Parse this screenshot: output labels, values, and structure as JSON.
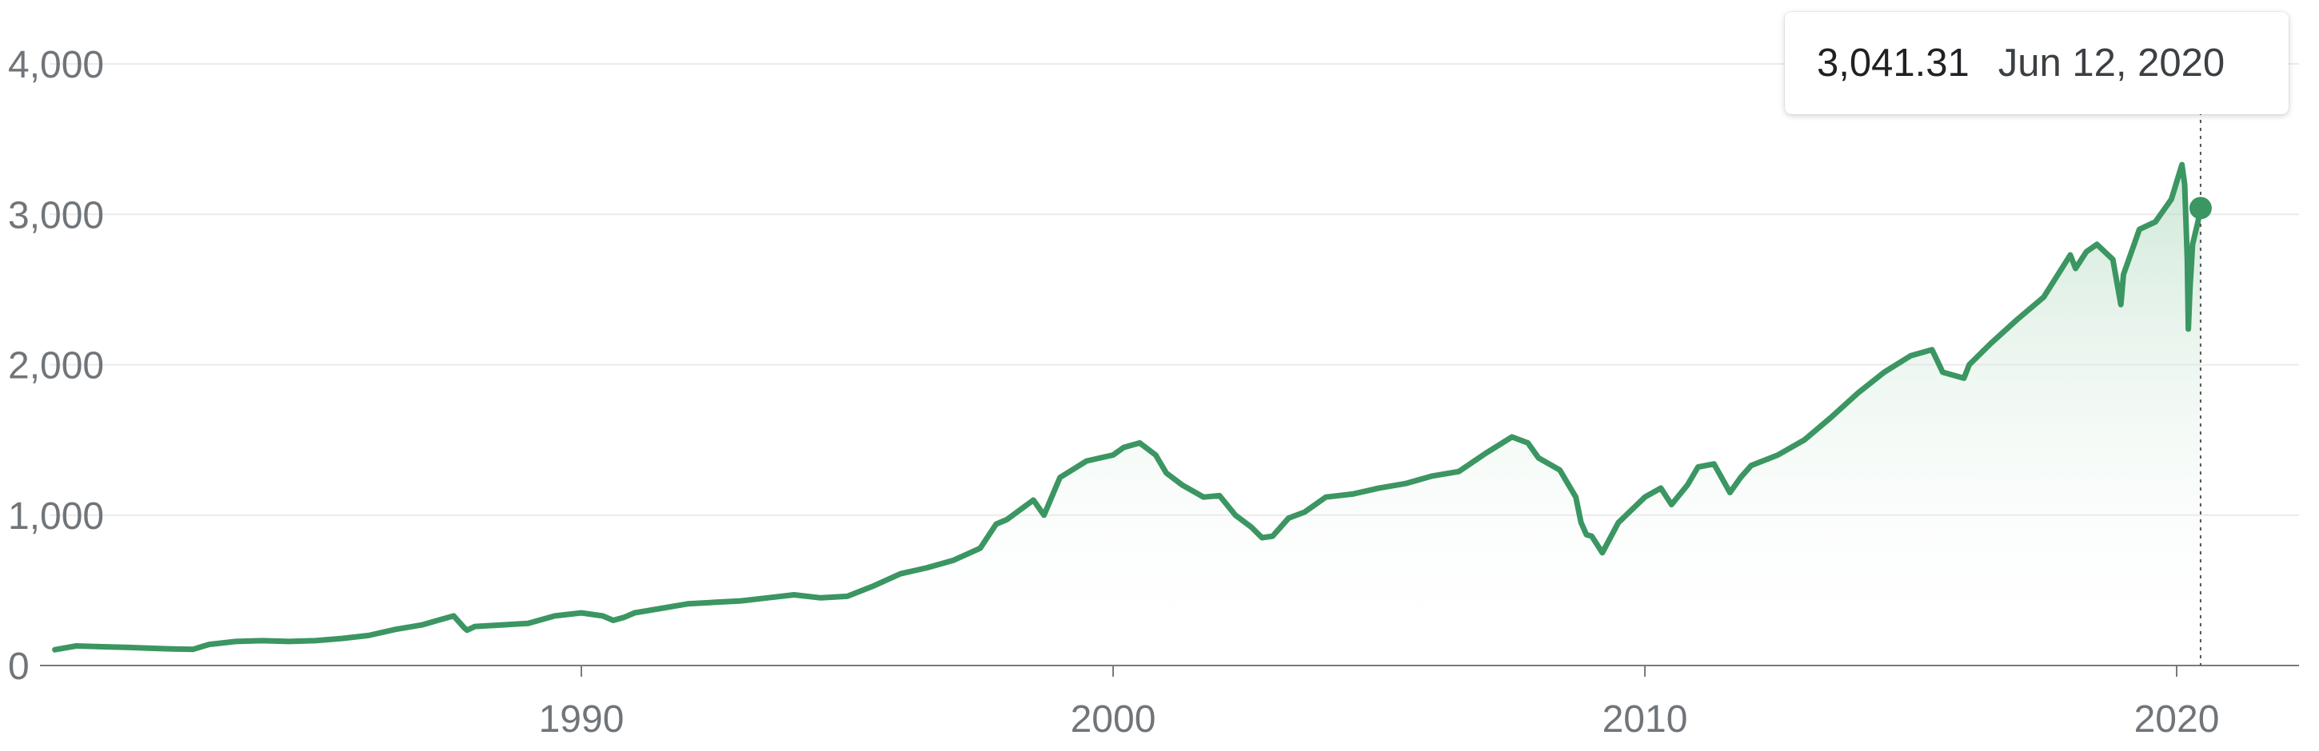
{
  "colors": {
    "line": "#3b9662",
    "fill_top": "#a6d4b7",
    "fill_bottom": "#ffffff",
    "gridline": "#ebebeb",
    "axis": "#7a7a7a",
    "tick_text": "#70757a",
    "crosshair": "#555555"
  },
  "tooltip": {
    "value": "3,041.31",
    "date": "Jun 12, 2020"
  },
  "chart_data": {
    "type": "line",
    "title": "",
    "xlabel": "",
    "ylabel": "",
    "ylim": [
      0,
      4000
    ],
    "xlim": [
      1980,
      2020.5
    ],
    "grid": true,
    "legend": "none",
    "y_ticks": [
      {
        "value": 0,
        "label": "0"
      },
      {
        "value": 1000,
        "label": "1,000"
      },
      {
        "value": 2000,
        "label": "2,000"
      },
      {
        "value": 3000,
        "label": "3,000"
      },
      {
        "value": 4000,
        "label": "4,000"
      }
    ],
    "x_ticks": [
      {
        "value": 1990,
        "label": "1990"
      },
      {
        "value": 2000,
        "label": "2000"
      },
      {
        "value": 2010,
        "label": "2010"
      },
      {
        "value": 2020,
        "label": "2020"
      }
    ],
    "highlight": {
      "x": 2020.45,
      "y": 3041.31
    },
    "series": [
      {
        "x": [
          1980.1,
          1980.5,
          1981.0,
          1981.5,
          1981.9,
          1982.3,
          1982.7,
          1983.0,
          1983.5,
          1984.0,
          1984.5,
          1985.0,
          1985.5,
          1986.0,
          1986.5,
          1987.0,
          1987.3,
          1987.6,
          1987.8,
          1987.85,
          1988.0,
          1988.5,
          1989.0,
          1989.5,
          1990.0,
          1990.4,
          1990.6,
          1990.8,
          1991.0,
          1991.5,
          1992.0,
          1992.5,
          1993.0,
          1993.5,
          1994.0,
          1994.5,
          1995.0,
          1995.5,
          1996.0,
          1996.5,
          1997.0,
          1997.5,
          1997.8,
          1998.0,
          1998.5,
          1998.7,
          1999.0,
          1999.5,
          2000.0,
          2000.2,
          2000.5,
          2000.8,
          2001.0,
          2001.3,
          2001.7,
          2002.0,
          2002.3,
          2002.6,
          2002.8,
          2003.0,
          2003.3,
          2003.6,
          2004.0,
          2004.5,
          2005.0,
          2005.5,
          2006.0,
          2006.5,
          2007.0,
          2007.5,
          2007.8,
          2008.0,
          2008.4,
          2008.7,
          2008.8,
          2008.9,
          2009.0,
          2009.2,
          2009.5,
          2010.0,
          2010.3,
          2010.5,
          2010.8,
          2011.0,
          2011.3,
          2011.6,
          2011.8,
          2012.0,
          2012.5,
          2013.0,
          2013.5,
          2014.0,
          2014.5,
          2015.0,
          2015.4,
          2015.6,
          2016.0,
          2016.1,
          2016.5,
          2017.0,
          2017.5,
          2018.0,
          2018.1,
          2018.3,
          2018.5,
          2018.8,
          2018.95,
          2019.0,
          2019.3,
          2019.6,
          2019.9,
          2020.1,
          2020.15,
          2020.2,
          2020.22,
          2020.25,
          2020.3,
          2020.4,
          2020.45
        ],
        "y": [
          105,
          130,
          125,
          120,
          115,
          110,
          108,
          140,
          160,
          165,
          160,
          165,
          180,
          200,
          240,
          270,
          300,
          330,
          250,
          235,
          260,
          270,
          280,
          330,
          350,
          330,
          300,
          320,
          350,
          380,
          410,
          420,
          430,
          450,
          470,
          450,
          460,
          530,
          610,
          650,
          700,
          780,
          940,
          970,
          1100,
          1000,
          1250,
          1360,
          1400,
          1450,
          1480,
          1400,
          1280,
          1200,
          1120,
          1130,
          1000,
          920,
          850,
          860,
          980,
          1020,
          1120,
          1140,
          1180,
          1210,
          1260,
          1290,
          1410,
          1520,
          1480,
          1380,
          1300,
          1120,
          950,
          870,
          860,
          750,
          950,
          1120,
          1180,
          1070,
          1200,
          1320,
          1340,
          1150,
          1250,
          1330,
          1400,
          1500,
          1650,
          1810,
          1950,
          2060,
          2100,
          1950,
          1910,
          2000,
          2140,
          2300,
          2450,
          2730,
          2640,
          2750,
          2800,
          2700,
          2400,
          2600,
          2900,
          2950,
          3100,
          3330,
          3200,
          2700,
          2237,
          2500,
          2800,
          2950,
          3041.31
        ]
      }
    ]
  }
}
